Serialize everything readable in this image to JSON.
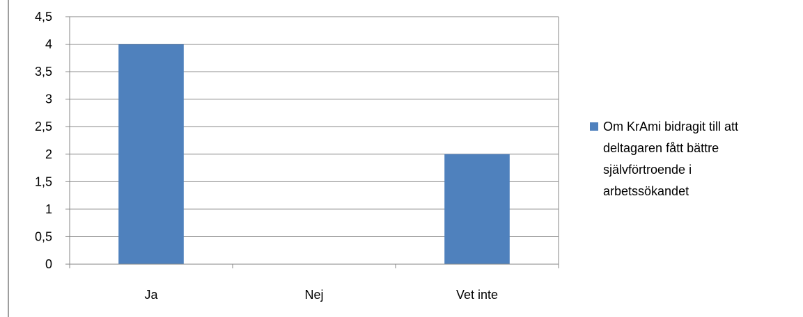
{
  "chart_data": {
    "type": "bar",
    "categories": [
      "Ja",
      "Nej",
      "Vet inte"
    ],
    "series": [
      {
        "name": "Om KrAmi bidragit till att deltagaren fått bättre självförtroende i arbetssökandet",
        "values": [
          4,
          0,
          2
        ]
      }
    ],
    "ylim": [
      0,
      4.5
    ],
    "yticks": [
      "0",
      "0,5",
      "1",
      "1,5",
      "2",
      "2,5",
      "3",
      "3,5",
      "4",
      "4,5"
    ],
    "grid": true,
    "legend_position": "right",
    "legend_lines": [
      "Om KrAmi bidragit till att",
      "deltagaren fått bättre",
      "självförtroende i",
      "arbetssökandet"
    ],
    "bar_color": "#4F81BD",
    "grid_color": "#868686"
  }
}
